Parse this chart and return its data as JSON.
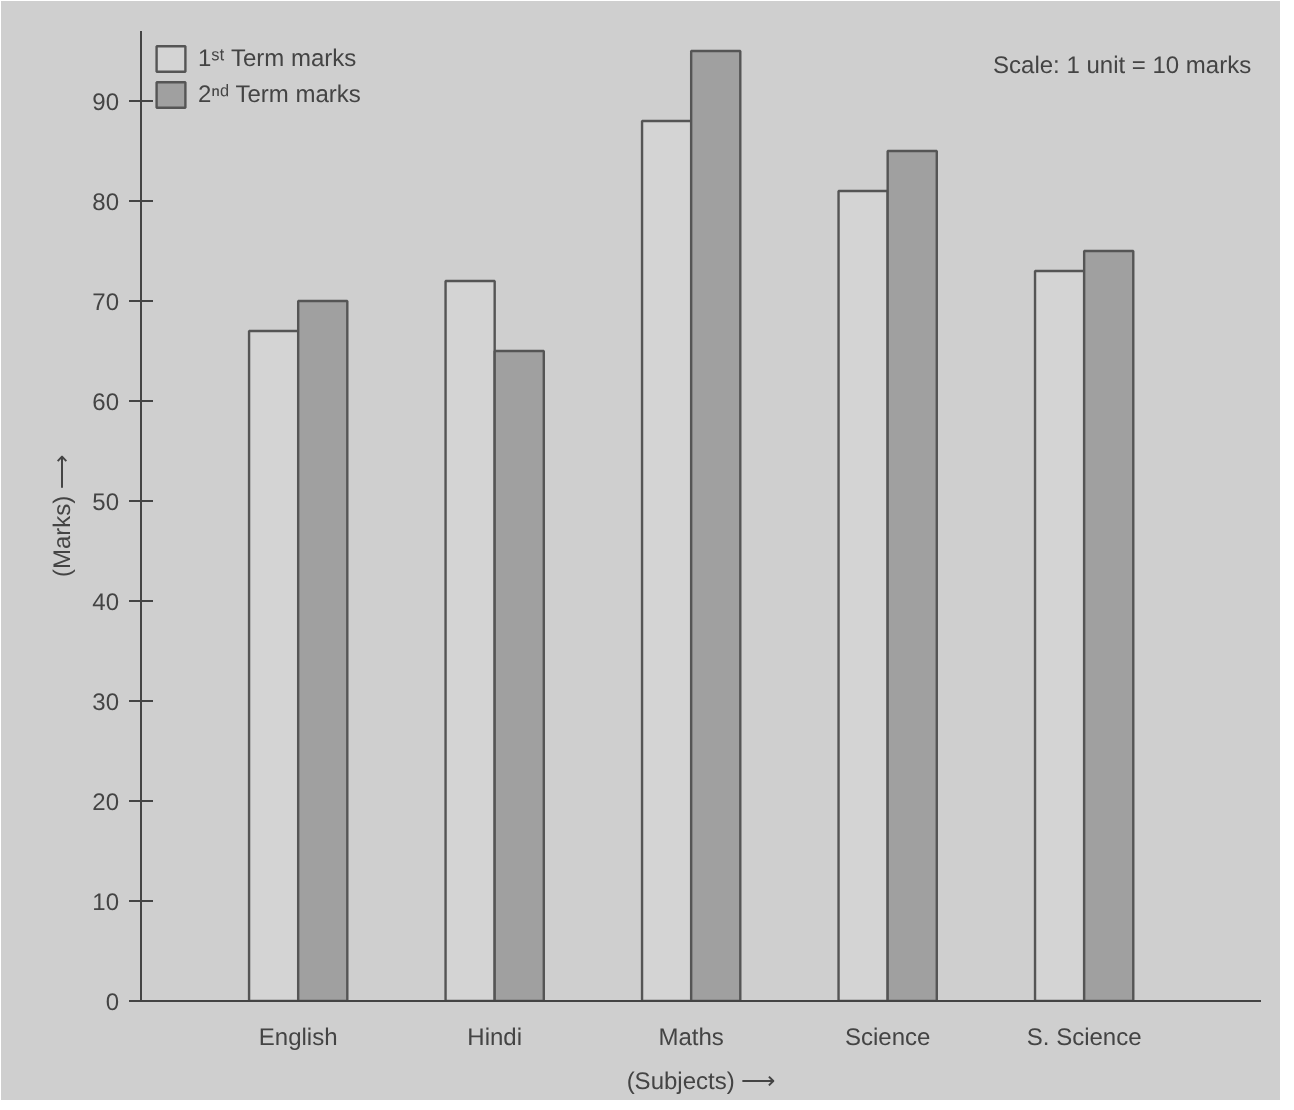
{
  "chart_data": {
    "type": "bar",
    "xlabel": "(Subjects) ⟶",
    "ylabel": "(Marks) ⟶",
    "categories": [
      "English",
      "Hindi",
      "Maths",
      "Science",
      "S. Science"
    ],
    "series": [
      {
        "name": "1ˢᵗ Term marks",
        "color": "#d4d4d4",
        "values": [
          67,
          72,
          88,
          81,
          73
        ]
      },
      {
        "name": "2ⁿᵈ Term marks",
        "color": "#a0a0a0",
        "values": [
          70,
          65,
          95,
          85,
          75
        ]
      }
    ],
    "ylim": [
      0,
      97
    ],
    "yticks": [
      0,
      10,
      20,
      30,
      40,
      50,
      60,
      70,
      80,
      90
    ],
    "annotations": [
      "Scale: 1 unit = 10 marks"
    ],
    "legend": "top left",
    "grid": false
  }
}
